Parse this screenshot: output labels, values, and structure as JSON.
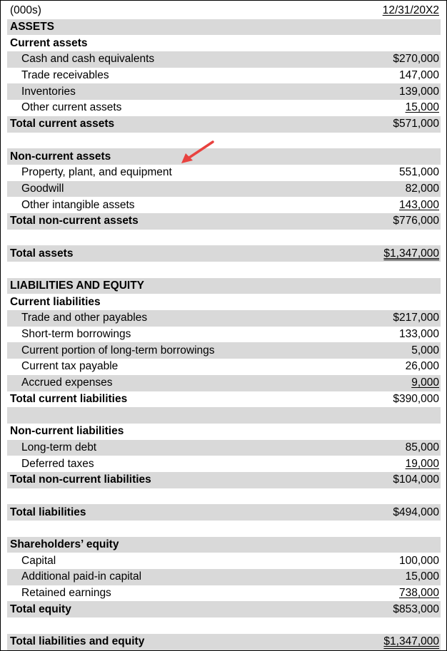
{
  "header": {
    "units": "(000s)",
    "date": "12/31/20X2"
  },
  "rows": [
    {
      "label": "ASSETS",
      "value": "",
      "style": "heading"
    },
    {
      "label": "Current assets",
      "value": "",
      "style": "heading"
    },
    {
      "label": "Cash and cash equivalents",
      "value": "$270,000",
      "style": "item"
    },
    {
      "label": "Trade receivables",
      "value": "147,000",
      "style": "item"
    },
    {
      "label": "Inventories",
      "value": "139,000",
      "style": "item"
    },
    {
      "label": "Other current assets",
      "value": "15,000",
      "style": "item",
      "underline": "single"
    },
    {
      "label": "Total current assets",
      "value": "$571,000",
      "style": "total"
    },
    {
      "label": "",
      "value": "",
      "style": "blank"
    },
    {
      "label": "Non-current assets",
      "value": "",
      "style": "heading"
    },
    {
      "label": "Property, plant, and equipment",
      "value": "551,000",
      "style": "item"
    },
    {
      "label": "Goodwill",
      "value": "82,000",
      "style": "item"
    },
    {
      "label": "Other intangible assets",
      "value": "143,000",
      "style": "item",
      "underline": "single"
    },
    {
      "label": "Total non-current assets",
      "value": "$776,000",
      "style": "total"
    },
    {
      "label": "",
      "value": "",
      "style": "blank"
    },
    {
      "label": "Total assets",
      "value": "$1,347,000",
      "style": "total",
      "underline": "double"
    },
    {
      "label": "",
      "value": "",
      "style": "blank"
    },
    {
      "label": "LIABILITIES AND EQUITY",
      "value": "",
      "style": "heading"
    },
    {
      "label": "Current liabilities",
      "value": "",
      "style": "heading"
    },
    {
      "label": "Trade and other payables",
      "value": "$217,000",
      "style": "item"
    },
    {
      "label": "Short-term borrowings",
      "value": "133,000",
      "style": "item"
    },
    {
      "label": "Current portion of long-term borrowings",
      "value": "5,000",
      "style": "item"
    },
    {
      "label": "Current tax payable",
      "value": "26,000",
      "style": "item"
    },
    {
      "label": "Accrued expenses",
      "value": "9,000",
      "style": "item",
      "underline": "single"
    },
    {
      "label": "Total current liabilities",
      "value": "$390,000",
      "style": "total"
    },
    {
      "label": "",
      "value": "",
      "style": "blank"
    },
    {
      "label": "Non-current liabilities",
      "value": "",
      "style": "heading"
    },
    {
      "label": "Long-term debt",
      "value": "85,000",
      "style": "item"
    },
    {
      "label": "Deferred taxes",
      "value": "19,000",
      "style": "item",
      "underline": "single"
    },
    {
      "label": "Total non-current liabilities",
      "value": "$104,000",
      "style": "total"
    },
    {
      "label": "",
      "value": "",
      "style": "blank"
    },
    {
      "label": "Total liabilities",
      "value": "$494,000",
      "style": "total"
    },
    {
      "label": "",
      "value": "",
      "style": "blank"
    },
    {
      "label": "Shareholders’ equity",
      "value": "",
      "style": "heading"
    },
    {
      "label": "Capital",
      "value": "100,000",
      "style": "item"
    },
    {
      "label": "Additional paid-in capital",
      "value": "15,000",
      "style": "item"
    },
    {
      "label": "Retained earnings",
      "value": "738,000",
      "style": "item",
      "underline": "single"
    },
    {
      "label": "Total equity",
      "value": "$853,000",
      "style": "total"
    },
    {
      "label": "",
      "value": "",
      "style": "blank"
    },
    {
      "label": "Total liabilities and equity",
      "value": "$1,347,000",
      "style": "total",
      "underline": "double"
    }
  ],
  "annotation": {
    "arrow_color": "#e8423f",
    "arrow_icon": "red-arrow-icon"
  }
}
